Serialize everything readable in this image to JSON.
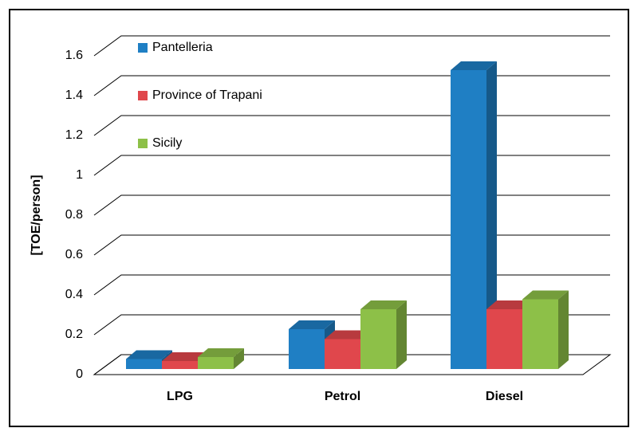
{
  "chart_data": {
    "type": "bar3d",
    "y_label": "[TOE/person]",
    "categories": [
      "LPG",
      "Petrol",
      "Diesel"
    ],
    "series": [
      {
        "name": "Pantelleria",
        "color": "#1f7fc4",
        "values": [
          0.05,
          0.2,
          1.5
        ]
      },
      {
        "name": "Province of Trapani",
        "color": "#e0474c",
        "values": [
          0.04,
          0.15,
          0.3
        ]
      },
      {
        "name": "Sicily",
        "color": "#8dc048",
        "values": [
          0.06,
          0.3,
          0.35
        ]
      }
    ],
    "ylim": [
      0,
      1.6
    ],
    "yticks": [
      0,
      0.2,
      0.4,
      0.6,
      0.8,
      1,
      1.2,
      1.4,
      1.6
    ],
    "grid": true,
    "legend": "top-left"
  }
}
